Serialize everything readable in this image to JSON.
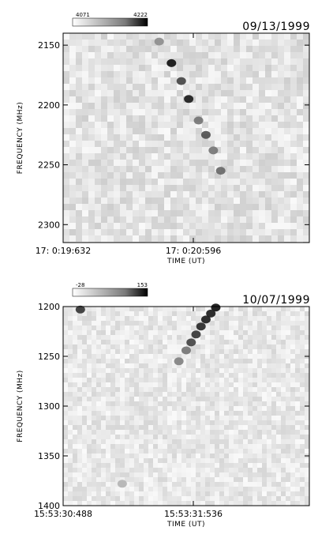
{
  "chart_data": [
    {
      "type": "heatmap",
      "date": "09/13/1999",
      "ylabel": "FREQUENCY (MHz)",
      "xlabel": "TIME (UT)",
      "y_ticks": [
        2150,
        2200,
        2250,
        2300
      ],
      "y_tick_labels": [
        "2150",
        "2200",
        "2250",
        "2300"
      ],
      "ylim": [
        2140,
        2315
      ],
      "x_tick_labels": [
        "17: 0:19:632",
        "17: 0:20:596"
      ],
      "colorbar": {
        "min_label": "4071",
        "max_label": "4222",
        "colors": [
          "#ffffff",
          "#000000"
        ]
      },
      "background_level": 0.12,
      "burst_points": [
        {
          "t": 0.39,
          "f": 2147,
          "intensity": 0.45
        },
        {
          "t": 0.44,
          "f": 2165,
          "intensity": 0.95
        },
        {
          "t": 0.48,
          "f": 2180,
          "intensity": 0.75
        },
        {
          "t": 0.51,
          "f": 2195,
          "intensity": 0.9
        },
        {
          "t": 0.55,
          "f": 2213,
          "intensity": 0.55
        },
        {
          "t": 0.58,
          "f": 2225,
          "intensity": 0.7
        },
        {
          "t": 0.61,
          "f": 2238,
          "intensity": 0.55
        },
        {
          "t": 0.64,
          "f": 2255,
          "intensity": 0.6
        }
      ]
    },
    {
      "type": "heatmap",
      "date": "10/07/1999",
      "ylabel": "FREQUENCY (MHz)",
      "xlabel": "TIME (UT)",
      "y_ticks": [
        1200,
        1250,
        1300,
        1350,
        1400
      ],
      "y_tick_labels": [
        "1200",
        "1250",
        "1300",
        "1350",
        "1400"
      ],
      "ylim": [
        1200,
        1400
      ],
      "x_tick_labels": [
        "15:53:30:488",
        "15:53:31:536"
      ],
      "colorbar": {
        "min_label": "-28",
        "max_label": "153",
        "colors": [
          "#ffffff",
          "#000000"
        ]
      },
      "background_level": 0.1,
      "burst_points": [
        {
          "t": 0.07,
          "f": 1203,
          "intensity": 0.8
        },
        {
          "t": 0.62,
          "f": 1201,
          "intensity": 0.95
        },
        {
          "t": 0.6,
          "f": 1207,
          "intensity": 0.9
        },
        {
          "t": 0.58,
          "f": 1213,
          "intensity": 0.9
        },
        {
          "t": 0.56,
          "f": 1220,
          "intensity": 0.85
        },
        {
          "t": 0.54,
          "f": 1228,
          "intensity": 0.8
        },
        {
          "t": 0.52,
          "f": 1236,
          "intensity": 0.75
        },
        {
          "t": 0.5,
          "f": 1244,
          "intensity": 0.55
        },
        {
          "t": 0.47,
          "f": 1255,
          "intensity": 0.5
        },
        {
          "t": 0.24,
          "f": 1378,
          "intensity": 0.3
        }
      ]
    }
  ]
}
